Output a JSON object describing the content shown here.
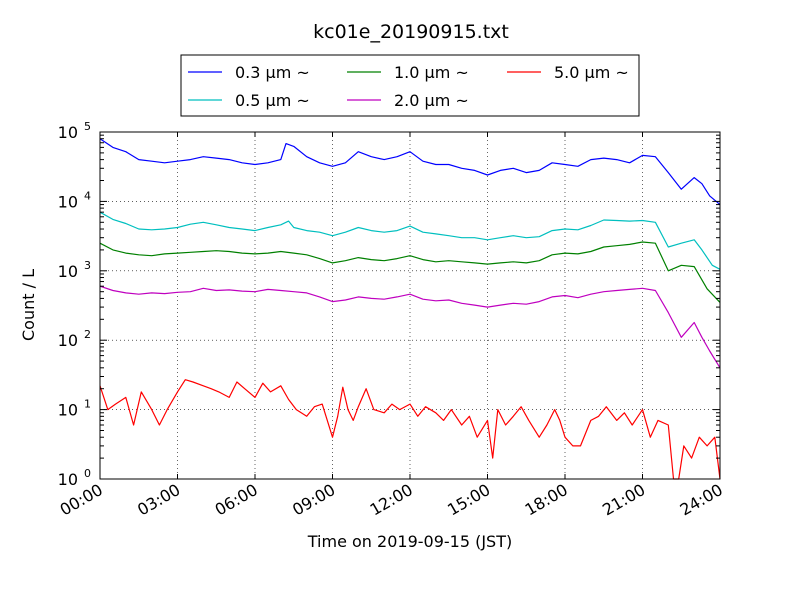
{
  "chart_data": {
    "type": "line",
    "title": "kc01e_20190915.txt",
    "xlabel": "Time on 2019-09-15 (JST)",
    "ylabel": "Count / L",
    "yscale": "log",
    "ylim": [
      1,
      100000
    ],
    "xlim_hours": [
      0,
      24
    ],
    "grid": true,
    "legend_position": "top",
    "x_tick_labels": [
      "00:00",
      "03:00",
      "06:00",
      "09:00",
      "12:00",
      "15:00",
      "18:00",
      "21:00",
      "24:00"
    ],
    "y_tick_labels": [
      {
        "base": "10",
        "exp": "0"
      },
      {
        "base": "10",
        "exp": "1"
      },
      {
        "base": "10",
        "exp": "2"
      },
      {
        "base": "10",
        "exp": "3"
      },
      {
        "base": "10",
        "exp": "4"
      },
      {
        "base": "10",
        "exp": "5"
      }
    ],
    "series": [
      {
        "name": "0.3 μm ~",
        "color": "#0000ff",
        "points": [
          [
            0,
            80000
          ],
          [
            0.5,
            60000
          ],
          [
            1,
            52000
          ],
          [
            1.5,
            40000
          ],
          [
            2,
            38000
          ],
          [
            2.5,
            36000
          ],
          [
            3,
            38000
          ],
          [
            3.5,
            40000
          ],
          [
            4,
            44000
          ],
          [
            4.5,
            42000
          ],
          [
            5,
            40000
          ],
          [
            5.5,
            36000
          ],
          [
            6,
            34000
          ],
          [
            6.5,
            36000
          ],
          [
            7,
            40000
          ],
          [
            7.2,
            68000
          ],
          [
            7.5,
            62000
          ],
          [
            8,
            44000
          ],
          [
            8.5,
            36000
          ],
          [
            9,
            32000
          ],
          [
            9.5,
            36000
          ],
          [
            10,
            52000
          ],
          [
            10.5,
            44000
          ],
          [
            11,
            40000
          ],
          [
            11.5,
            44000
          ],
          [
            12,
            52000
          ],
          [
            12.5,
            38000
          ],
          [
            13,
            34000
          ],
          [
            13.5,
            34000
          ],
          [
            14,
            30000
          ],
          [
            14.5,
            28000
          ],
          [
            15,
            24000
          ],
          [
            15.5,
            28000
          ],
          [
            16,
            30000
          ],
          [
            16.5,
            26000
          ],
          [
            17,
            28000
          ],
          [
            17.5,
            36000
          ],
          [
            18,
            34000
          ],
          [
            18.5,
            32000
          ],
          [
            19,
            40000
          ],
          [
            19.5,
            42000
          ],
          [
            20,
            40000
          ],
          [
            20.5,
            36000
          ],
          [
            21,
            46000
          ],
          [
            21.5,
            44000
          ],
          [
            22,
            26000
          ],
          [
            22.5,
            15000
          ],
          [
            23,
            22000
          ],
          [
            23.3,
            18000
          ],
          [
            23.6,
            12000
          ],
          [
            24,
            9000
          ]
        ]
      },
      {
        "name": "0.5 μm ~",
        "color": "#00bfbf",
        "points": [
          [
            0,
            7000
          ],
          [
            0.5,
            5500
          ],
          [
            1,
            4800
          ],
          [
            1.5,
            4000
          ],
          [
            2,
            3900
          ],
          [
            2.5,
            4000
          ],
          [
            3,
            4200
          ],
          [
            3.5,
            4700
          ],
          [
            4,
            5000
          ],
          [
            4.5,
            4600
          ],
          [
            5,
            4200
          ],
          [
            5.5,
            4000
          ],
          [
            6,
            3800
          ],
          [
            6.5,
            4200
          ],
          [
            7,
            4600
          ],
          [
            7.3,
            5200
          ],
          [
            7.5,
            4200
          ],
          [
            8,
            3800
          ],
          [
            8.5,
            3600
          ],
          [
            9,
            3200
          ],
          [
            9.5,
            3600
          ],
          [
            10,
            4200
          ],
          [
            10.5,
            3800
          ],
          [
            11,
            3600
          ],
          [
            11.5,
            3800
          ],
          [
            12,
            4400
          ],
          [
            12.5,
            3600
          ],
          [
            13,
            3400
          ],
          [
            13.5,
            3200
          ],
          [
            14,
            3000
          ],
          [
            14.5,
            3000
          ],
          [
            15,
            2800
          ],
          [
            15.5,
            3000
          ],
          [
            16,
            3200
          ],
          [
            16.5,
            3000
          ],
          [
            17,
            3100
          ],
          [
            17.5,
            3800
          ],
          [
            18,
            4000
          ],
          [
            18.5,
            3900
          ],
          [
            19,
            4500
          ],
          [
            19.5,
            5400
          ],
          [
            20,
            5300
          ],
          [
            20.5,
            5200
          ],
          [
            21,
            5300
          ],
          [
            21.5,
            5000
          ],
          [
            22,
            2200
          ],
          [
            22.5,
            2500
          ],
          [
            23,
            2800
          ],
          [
            23.3,
            2000
          ],
          [
            23.7,
            1200
          ],
          [
            24,
            1050
          ]
        ]
      },
      {
        "name": "1.0 μm ~",
        "color": "#008000",
        "points": [
          [
            0,
            2500
          ],
          [
            0.5,
            2000
          ],
          [
            1,
            1800
          ],
          [
            1.5,
            1700
          ],
          [
            2,
            1650
          ],
          [
            2.5,
            1750
          ],
          [
            3,
            1800
          ],
          [
            3.5,
            1850
          ],
          [
            4,
            1900
          ],
          [
            4.5,
            1950
          ],
          [
            5,
            1900
          ],
          [
            5.5,
            1800
          ],
          [
            6,
            1750
          ],
          [
            6.5,
            1800
          ],
          [
            7,
            1900
          ],
          [
            7.5,
            1800
          ],
          [
            8,
            1700
          ],
          [
            8.5,
            1500
          ],
          [
            9,
            1300
          ],
          [
            9.5,
            1400
          ],
          [
            10,
            1550
          ],
          [
            10.5,
            1450
          ],
          [
            11,
            1400
          ],
          [
            11.5,
            1500
          ],
          [
            12,
            1650
          ],
          [
            12.5,
            1450
          ],
          [
            13,
            1350
          ],
          [
            13.5,
            1400
          ],
          [
            14,
            1350
          ],
          [
            14.5,
            1300
          ],
          [
            15,
            1250
          ],
          [
            15.5,
            1300
          ],
          [
            16,
            1350
          ],
          [
            16.5,
            1300
          ],
          [
            17,
            1400
          ],
          [
            17.5,
            1700
          ],
          [
            18,
            1800
          ],
          [
            18.5,
            1750
          ],
          [
            19,
            1900
          ],
          [
            19.5,
            2200
          ],
          [
            20,
            2300
          ],
          [
            20.5,
            2400
          ],
          [
            21,
            2600
          ],
          [
            21.5,
            2500
          ],
          [
            22,
            1000
          ],
          [
            22.5,
            1200
          ],
          [
            23,
            1150
          ],
          [
            23.5,
            550
          ],
          [
            24,
            350
          ]
        ]
      },
      {
        "name": "2.0 μm ~",
        "color": "#bf00bf",
        "points": [
          [
            0,
            600
          ],
          [
            0.5,
            520
          ],
          [
            1,
            480
          ],
          [
            1.5,
            460
          ],
          [
            2,
            480
          ],
          [
            2.5,
            470
          ],
          [
            3,
            490
          ],
          [
            3.5,
            500
          ],
          [
            4,
            560
          ],
          [
            4.5,
            520
          ],
          [
            5,
            530
          ],
          [
            5.5,
            510
          ],
          [
            6,
            500
          ],
          [
            6.5,
            540
          ],
          [
            7,
            520
          ],
          [
            7.5,
            500
          ],
          [
            8,
            480
          ],
          [
            8.5,
            420
          ],
          [
            9,
            360
          ],
          [
            9.5,
            380
          ],
          [
            10,
            420
          ],
          [
            10.5,
            400
          ],
          [
            11,
            390
          ],
          [
            11.5,
            420
          ],
          [
            12,
            460
          ],
          [
            12.5,
            390
          ],
          [
            13,
            370
          ],
          [
            13.5,
            380
          ],
          [
            14,
            340
          ],
          [
            14.5,
            320
          ],
          [
            15,
            300
          ],
          [
            15.5,
            320
          ],
          [
            16,
            340
          ],
          [
            16.5,
            330
          ],
          [
            17,
            360
          ],
          [
            17.5,
            420
          ],
          [
            18,
            440
          ],
          [
            18.5,
            410
          ],
          [
            19,
            460
          ],
          [
            19.5,
            500
          ],
          [
            20,
            520
          ],
          [
            20.5,
            540
          ],
          [
            21,
            560
          ],
          [
            21.5,
            520
          ],
          [
            22,
            250
          ],
          [
            22.5,
            110
          ],
          [
            23,
            180
          ],
          [
            23.3,
            110
          ],
          [
            23.6,
            70
          ],
          [
            24,
            40
          ]
        ]
      },
      {
        "name": "5.0 μm ~",
        "color": "#ff0000",
        "points": [
          [
            0,
            22
          ],
          [
            0.3,
            10
          ],
          [
            0.6,
            12
          ],
          [
            1,
            15
          ],
          [
            1.3,
            6
          ],
          [
            1.6,
            18
          ],
          [
            2,
            10
          ],
          [
            2.3,
            6
          ],
          [
            2.6,
            10
          ],
          [
            3,
            18
          ],
          [
            3.3,
            27
          ],
          [
            3.6,
            25
          ],
          [
            4,
            22
          ],
          [
            4.3,
            20
          ],
          [
            4.6,
            18
          ],
          [
            5,
            15
          ],
          [
            5.3,
            25
          ],
          [
            5.6,
            20
          ],
          [
            6,
            15
          ],
          [
            6.3,
            24
          ],
          [
            6.6,
            18
          ],
          [
            7,
            22
          ],
          [
            7.3,
            14
          ],
          [
            7.6,
            10
          ],
          [
            8,
            8
          ],
          [
            8.3,
            11
          ],
          [
            8.6,
            12
          ],
          [
            9,
            4
          ],
          [
            9.2,
            8
          ],
          [
            9.4,
            21
          ],
          [
            9.6,
            10
          ],
          [
            9.8,
            7
          ],
          [
            10,
            11
          ],
          [
            10.3,
            20
          ],
          [
            10.6,
            10
          ],
          [
            11,
            9
          ],
          [
            11.3,
            12
          ],
          [
            11.6,
            10
          ],
          [
            12,
            12
          ],
          [
            12.3,
            8
          ],
          [
            12.6,
            11
          ],
          [
            13,
            9
          ],
          [
            13.3,
            7
          ],
          [
            13.6,
            10
          ],
          [
            14,
            6
          ],
          [
            14.3,
            8
          ],
          [
            14.6,
            4
          ],
          [
            15,
            7
          ],
          [
            15.2,
            2
          ],
          [
            15.4,
            10
          ],
          [
            15.7,
            6
          ],
          [
            16,
            8
          ],
          [
            16.3,
            11
          ],
          [
            16.6,
            7
          ],
          [
            17,
            4
          ],
          [
            17.3,
            6
          ],
          [
            17.6,
            10
          ],
          [
            17.8,
            7
          ],
          [
            18,
            4
          ],
          [
            18.3,
            3
          ],
          [
            18.6,
            3
          ],
          [
            19,
            7
          ],
          [
            19.3,
            8
          ],
          [
            19.6,
            11
          ],
          [
            20,
            7
          ],
          [
            20.3,
            9
          ],
          [
            20.6,
            6
          ],
          [
            21,
            10
          ],
          [
            21.3,
            4
          ],
          [
            21.6,
            7
          ],
          [
            22,
            6
          ],
          [
            22.2,
            1
          ],
          [
            22.4,
            1
          ],
          [
            22.6,
            3
          ],
          [
            22.9,
            2
          ],
          [
            23.2,
            4
          ],
          [
            23.5,
            3
          ],
          [
            23.8,
            4
          ],
          [
            24,
            1
          ]
        ]
      }
    ]
  }
}
